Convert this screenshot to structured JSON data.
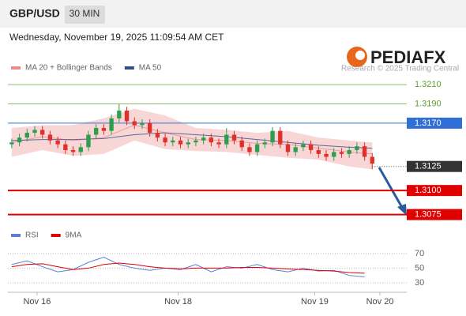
{
  "header": {
    "symbol": "GBP/USD",
    "timeframe": "30 MIN",
    "timestamp": "Wednesday, November 19, 2025 11:09:54 AM CET"
  },
  "branding": {
    "logo": "PEDIAFX",
    "credit": "Research © 2025 Trading Central"
  },
  "chart_data": [
    {
      "type": "candlestick",
      "xlim": [
        -0.5,
        51.5
      ],
      "ylim": [
        1.3064,
        1.322
      ],
      "up_color": "#2e9e4e",
      "down_color": "#e0302a",
      "band_color": "#f9d6d6",
      "candles": {
        "open": [
          1.3148,
          1.315,
          1.3155,
          1.316,
          1.3163,
          1.3158,
          1.3152,
          1.3148,
          1.3142,
          1.314,
          1.3145,
          1.3158,
          1.3165,
          1.3162,
          1.3175,
          1.3183,
          1.3172,
          1.3168,
          1.317,
          1.316,
          1.3155,
          1.315,
          1.3152,
          1.3148,
          1.315,
          1.3152,
          1.3155,
          1.315,
          1.3148,
          1.3158,
          1.3152,
          1.3145,
          1.314,
          1.3148,
          1.315,
          1.3162,
          1.3148,
          1.314,
          1.3145,
          1.3148,
          1.3142,
          1.3138,
          1.3135,
          1.314,
          1.3138,
          1.3142,
          1.3146,
          1.3135
        ],
        "high": [
          1.3154,
          1.3159,
          1.3164,
          1.3167,
          1.3167,
          1.3162,
          1.3156,
          1.3152,
          1.3146,
          1.3149,
          1.3162,
          1.3169,
          1.3169,
          1.3179,
          1.319,
          1.3187,
          1.3176,
          1.3174,
          1.3174,
          1.3164,
          1.3159,
          1.3156,
          1.3156,
          1.3154,
          1.3156,
          1.3159,
          1.3159,
          1.3154,
          1.3165,
          1.3162,
          1.3156,
          1.3149,
          1.3152,
          1.3154,
          1.3166,
          1.3166,
          1.3152,
          1.3149,
          1.3152,
          1.3152,
          1.3146,
          1.3142,
          1.3144,
          1.3144,
          1.3146,
          1.315,
          1.315,
          1.3139
        ],
        "low": [
          1.3144,
          1.3146,
          1.3151,
          1.3156,
          1.3154,
          1.3148,
          1.3144,
          1.3138,
          1.3136,
          1.3136,
          1.3141,
          1.3154,
          1.3158,
          1.3158,
          1.3171,
          1.3168,
          1.3164,
          1.3164,
          1.3156,
          1.3151,
          1.3146,
          1.3146,
          1.3144,
          1.3144,
          1.3146,
          1.3148,
          1.3146,
          1.3144,
          1.3144,
          1.3148,
          1.3141,
          1.3136,
          1.3136,
          1.3144,
          1.3146,
          1.3144,
          1.3136,
          1.3136,
          1.3141,
          1.3138,
          1.3134,
          1.3131,
          1.3131,
          1.3134,
          1.3134,
          1.3138,
          1.3131,
          1.3122
        ],
        "close": [
          1.315,
          1.3155,
          1.316,
          1.3163,
          1.3158,
          1.3152,
          1.3148,
          1.3142,
          1.314,
          1.3145,
          1.3158,
          1.3165,
          1.3162,
          1.3175,
          1.3183,
          1.3172,
          1.3168,
          1.317,
          1.316,
          1.3155,
          1.315,
          1.3152,
          1.3148,
          1.315,
          1.3152,
          1.3155,
          1.315,
          1.3148,
          1.3158,
          1.3152,
          1.3145,
          1.314,
          1.3148,
          1.315,
          1.3162,
          1.3148,
          1.314,
          1.3145,
          1.3148,
          1.3142,
          1.3138,
          1.3135,
          1.314,
          1.3138,
          1.3142,
          1.3146,
          1.3135,
          1.3128
        ]
      },
      "series": [
        {
          "name": "MA 20 + Bollinger Bands",
          "color": "#f08a8a",
          "x": [
            0,
            4,
            8,
            12,
            16,
            20,
            24,
            28,
            32,
            36,
            40,
            44,
            47
          ],
          "values": [
            1.315,
            1.3156,
            1.3152,
            1.3155,
            1.3168,
            1.316,
            1.3153,
            1.3152,
            1.3149,
            1.3148,
            1.3144,
            1.314,
            1.3138
          ],
          "upper": [
            1.3165,
            1.3168,
            1.3168,
            1.3175,
            1.3185,
            1.3178,
            1.3165,
            1.3163,
            1.316,
            1.3162,
            1.3155,
            1.3152,
            1.315
          ],
          "lower": [
            1.3135,
            1.3142,
            1.3136,
            1.3138,
            1.3152,
            1.3143,
            1.3141,
            1.314,
            1.3137,
            1.3134,
            1.3132,
            1.3125,
            1.3122
          ]
        },
        {
          "name": "MA 50",
          "color": "#2f4f8f",
          "x": [
            0,
            4,
            8,
            12,
            16,
            20,
            24,
            28,
            32,
            36,
            40,
            44,
            47
          ],
          "values": [
            1.3152,
            1.3153,
            1.3153,
            1.3154,
            1.3158,
            1.316,
            1.3158,
            1.3156,
            1.3153,
            1.315,
            1.3147,
            1.3145,
            1.3144
          ]
        }
      ],
      "levels": [
        {
          "value": 1.321,
          "label": "1.3210",
          "color": "#5aa02c",
          "boxed": false,
          "line": "solid"
        },
        {
          "value": 1.319,
          "label": "1.3190",
          "color": "#5aa02c",
          "boxed": false,
          "line": "solid"
        },
        {
          "value": 1.317,
          "label": "1.3170",
          "color": "#2f6fd6",
          "boxed": true,
          "line": "solid"
        },
        {
          "value": 1.3125,
          "label": "1.3125",
          "color": "#333333",
          "boxed": true,
          "line": "dotted"
        },
        {
          "value": 1.31,
          "label": "1.3100",
          "color": "#e00000",
          "boxed": true,
          "line": "thick"
        },
        {
          "value": 1.3075,
          "label": "1.3075",
          "color": "#e00000",
          "boxed": true,
          "line": "thick"
        }
      ]
    },
    {
      "type": "line",
      "xlim": [
        -0.5,
        51.5
      ],
      "ylim": [
        17,
        85
      ],
      "yticks": [
        70,
        50,
        30
      ],
      "grid": true,
      "xticks": [
        {
          "value": 3.3,
          "label": "Nov 16"
        },
        {
          "value": 21.7,
          "label": "Nov 18"
        },
        {
          "value": 39.5,
          "label": "Nov 19"
        },
        {
          "value": 48,
          "label": "Nov 20"
        }
      ],
      "series": [
        {
          "name": "RSI",
          "color": "#5b7fd6",
          "x": [
            0,
            2,
            4,
            6,
            8,
            10,
            12,
            14,
            16,
            18,
            20,
            22,
            24,
            26,
            28,
            30,
            32,
            34,
            36,
            38,
            40,
            42,
            44,
            46
          ],
          "values": [
            55,
            60,
            52,
            45,
            48,
            58,
            65,
            55,
            50,
            47,
            50,
            48,
            55,
            45,
            52,
            50,
            55,
            48,
            45,
            50,
            46,
            47,
            40,
            38
          ]
        },
        {
          "name": "9MA",
          "color": "#e00000",
          "x": [
            0,
            2,
            4,
            6,
            8,
            10,
            12,
            14,
            16,
            18,
            20,
            22,
            24,
            26,
            28,
            30,
            32,
            34,
            36,
            38,
            40,
            42,
            44,
            46
          ],
          "values": [
            52,
            55,
            56,
            52,
            48,
            50,
            55,
            57,
            55,
            52,
            50,
            49,
            50,
            50,
            50,
            51,
            51,
            50,
            49,
            48,
            47,
            46,
            44,
            43
          ]
        }
      ]
    }
  ]
}
